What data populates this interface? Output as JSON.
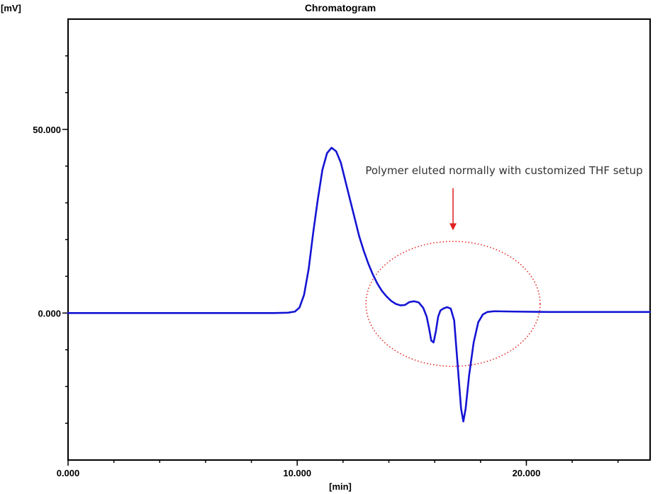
{
  "chart_data": {
    "type": "line",
    "title": "Chromatogram",
    "xlabel": "[min]",
    "ylabel": "[mV]",
    "xlim": [
      0,
      25.4
    ],
    "ylim": [
      -40,
      80
    ],
    "x_ticks": [
      {
        "value": 0,
        "label": "0.000"
      },
      {
        "value": 10,
        "label": "10.000"
      },
      {
        "value": 20,
        "label": "20.000"
      }
    ],
    "y_ticks": [
      {
        "value": 0,
        "label": "0.000"
      },
      {
        "value": 50,
        "label": "50.000"
      }
    ],
    "x_minor_step": 2,
    "y_minor_step": 10,
    "grid": false,
    "legend": "none",
    "series": [
      {
        "color": "#1414d4",
        "points": [
          [
            0,
            0
          ],
          [
            9,
            0
          ],
          [
            9.6,
            0.1
          ],
          [
            9.9,
            0.4
          ],
          [
            10.1,
            1.5
          ],
          [
            10.3,
            5
          ],
          [
            10.5,
            12
          ],
          [
            10.7,
            22
          ],
          [
            10.9,
            31
          ],
          [
            11.1,
            39
          ],
          [
            11.3,
            43.5
          ],
          [
            11.5,
            45
          ],
          [
            11.7,
            44
          ],
          [
            11.9,
            41
          ],
          [
            12.1,
            36
          ],
          [
            12.3,
            31
          ],
          [
            12.5,
            26
          ],
          [
            12.7,
            21
          ],
          [
            12.9,
            17
          ],
          [
            13.1,
            13.5
          ],
          [
            13.3,
            10.5
          ],
          [
            13.5,
            8
          ],
          [
            13.7,
            6
          ],
          [
            13.9,
            4.5
          ],
          [
            14.1,
            3.3
          ],
          [
            14.3,
            2.5
          ],
          [
            14.5,
            2.1
          ],
          [
            14.7,
            2.2
          ],
          [
            14.9,
            3
          ],
          [
            15.1,
            3.2
          ],
          [
            15.3,
            2.9
          ],
          [
            15.5,
            1.4
          ],
          [
            15.65,
            -1
          ],
          [
            15.75,
            -4
          ],
          [
            15.85,
            -7.5
          ],
          [
            15.95,
            -8
          ],
          [
            16.05,
            -5
          ],
          [
            16.15,
            -1
          ],
          [
            16.25,
            0.7
          ],
          [
            16.4,
            1.3
          ],
          [
            16.55,
            1.6
          ],
          [
            16.7,
            1.2
          ],
          [
            16.85,
            -2
          ],
          [
            17.0,
            -14
          ],
          [
            17.15,
            -26
          ],
          [
            17.25,
            -29.5
          ],
          [
            17.35,
            -26
          ],
          [
            17.5,
            -17
          ],
          [
            17.7,
            -8
          ],
          [
            17.9,
            -2.5
          ],
          [
            18.1,
            -0.4
          ],
          [
            18.3,
            0.3
          ],
          [
            18.6,
            0.5
          ],
          [
            19.5,
            0.4
          ],
          [
            21,
            0.3
          ],
          [
            23,
            0.3
          ],
          [
            25.4,
            0.3
          ]
        ]
      }
    ],
    "annotation": {
      "text": "Polymer eluted normally with customized THF setup",
      "color": "#e02020",
      "ellipse_center": [
        16.8,
        2.5
      ],
      "ellipse_radii": [
        3.8,
        17
      ],
      "arrow_from": [
        16.8,
        34
      ],
      "arrow_to": [
        16.8,
        22.5
      ]
    }
  }
}
